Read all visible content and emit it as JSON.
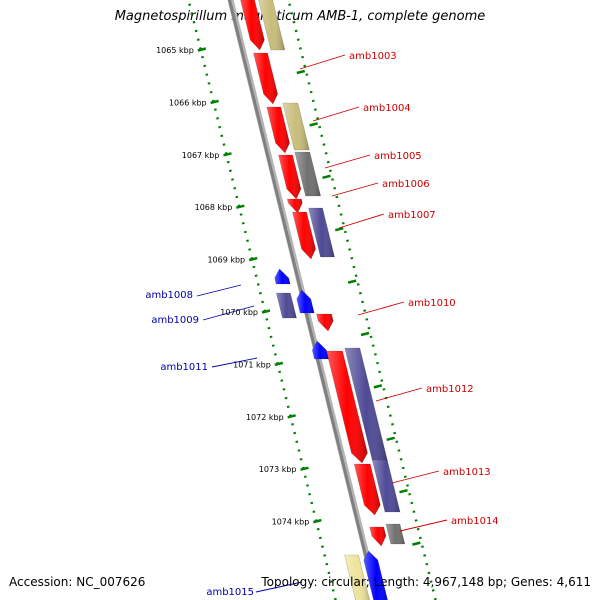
{
  "title": "Magnetospirillum magneticum AMB-1, complete genome",
  "footer": {
    "accession": "Accession: NC_007626",
    "topology": "Topology: circular; Length: 4,967,148 bp; Genes: 4,611"
  },
  "colors": {
    "backbone": "#808080",
    "forward_cds": "#ff0000",
    "reverse_cds": "#0000ff",
    "forward_label": "#cc0000",
    "reverse_label": "#0000aa",
    "cog_tan": "#c8bd7a",
    "cog_gray": "#707070",
    "cog_purple": "#4f4a96",
    "cog_yellow": "#ede39a",
    "tick": "#008000"
  },
  "ticks": [
    {
      "label": "1065 kbp"
    },
    {
      "label": "1066 kbp"
    },
    {
      "label": "1067 kbp"
    },
    {
      "label": "1068 kbp"
    },
    {
      "label": "1069 kbp"
    },
    {
      "label": "1070 kbp"
    },
    {
      "label": "1071 kbp"
    },
    {
      "label": "1072 kbp"
    },
    {
      "label": "1073 kbp"
    },
    {
      "label": "1074 kbp"
    }
  ],
  "genes": [
    {
      "name": "amb1003",
      "strand": "forward"
    },
    {
      "name": "amb1004",
      "strand": "forward"
    },
    {
      "name": "amb1005",
      "strand": "forward"
    },
    {
      "name": "amb1006",
      "strand": "forward"
    },
    {
      "name": "amb1007",
      "strand": "forward"
    },
    {
      "name": "amb1008",
      "strand": "reverse"
    },
    {
      "name": "amb1009",
      "strand": "reverse"
    },
    {
      "name": "amb1010",
      "strand": "forward"
    },
    {
      "name": "amb1011",
      "strand": "reverse"
    },
    {
      "name": "amb1012",
      "strand": "forward"
    },
    {
      "name": "amb1013",
      "strand": "forward"
    },
    {
      "name": "amb1014",
      "strand": "forward"
    },
    {
      "name": "amb1015",
      "strand": "reverse"
    }
  ]
}
